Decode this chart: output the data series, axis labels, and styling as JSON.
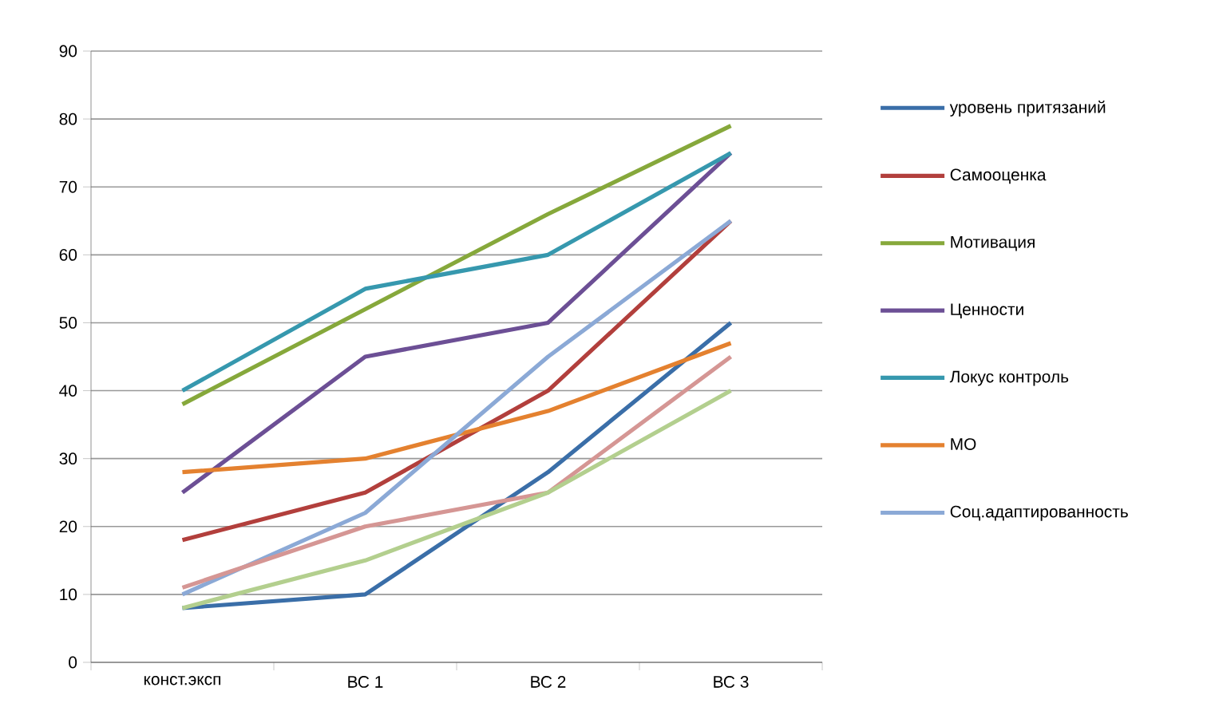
{
  "chart_data": {
    "type": "line",
    "categories": [
      "конст.эксп",
      "ВС 1",
      "ВС 2",
      "ВС 3"
    ],
    "ylim": [
      0,
      90
    ],
    "yticks": [
      0,
      10,
      20,
      30,
      40,
      50,
      60,
      70,
      80,
      90
    ],
    "grid": "y",
    "legend": "right",
    "series": [
      {
        "name": "уровень притязаний",
        "color": "#3a6ea8",
        "values": [
          8,
          10,
          28,
          50
        ]
      },
      {
        "name": "Самооценка",
        "color": "#b23f3c",
        "values": [
          18,
          25,
          40,
          65
        ]
      },
      {
        "name": "Мотивация",
        "color": "#86a83b",
        "values": [
          38,
          52,
          66,
          79
        ]
      },
      {
        "name": "Ценности",
        "color": "#6c4f95",
        "values": [
          25,
          45,
          50,
          75
        ]
      },
      {
        "name": "Локус контроль",
        "color": "#3698ae",
        "values": [
          40,
          55,
          60,
          75
        ]
      },
      {
        "name": "МО",
        "color": "#e4812f",
        "values": [
          28,
          30,
          37,
          47
        ]
      },
      {
        "name": "Соц.адаптированность",
        "color": "#8ba9d6",
        "values": [
          10,
          22,
          45,
          65
        ]
      },
      {
        "color": "#d59694",
        "values": [
          11,
          20,
          25,
          45
        ]
      },
      {
        "color": "#b3cf8e",
        "values": [
          8,
          15,
          25,
          40
        ]
      }
    ]
  }
}
